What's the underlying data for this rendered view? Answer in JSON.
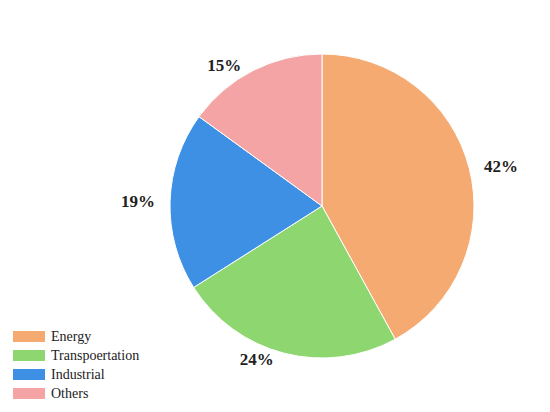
{
  "chart_data": {
    "type": "pie",
    "categories": [
      "Energy",
      "Transpoertation",
      "Industrial",
      "Others"
    ],
    "values": [
      42,
      24,
      19,
      15
    ],
    "value_labels": [
      "42%",
      "24%",
      "19%",
      "15%"
    ],
    "colors": [
      "#f5aa72",
      "#8ed66f",
      "#3d90e3",
      "#f4a4a4"
    ],
    "legend": "bottom-left",
    "data_labels": true
  }
}
